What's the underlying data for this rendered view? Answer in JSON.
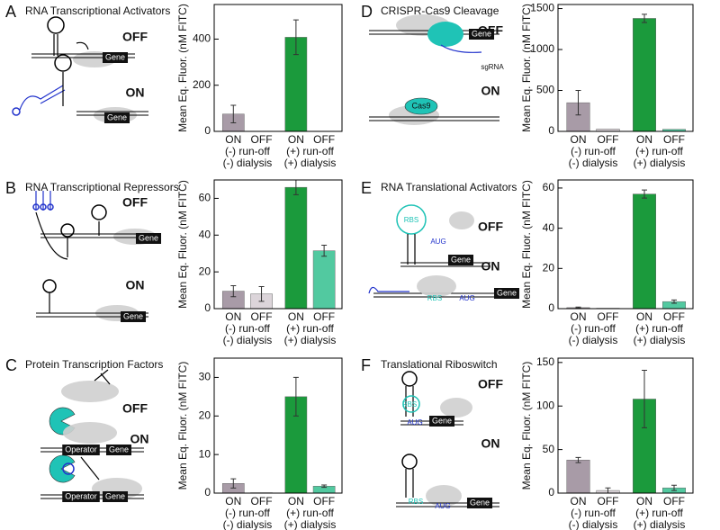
{
  "panels": [
    {
      "letter": "A",
      "title": "RNA Transcriptional Activators",
      "labels": [
        "OFF",
        "ON",
        "Gene",
        "Gene"
      ]
    },
    {
      "letter": "B",
      "title": "RNA Transcriptional Repressors",
      "labels": [
        "OFF",
        "ON",
        "Gene",
        "Gene"
      ]
    },
    {
      "letter": "C",
      "title": "Protein Transcription Factors",
      "labels": [
        "OFF",
        "ON",
        "Operator",
        "Gene",
        "Operator",
        "Gene"
      ]
    },
    {
      "letter": "D",
      "title": "CRISPR-Cas9 Cleavage",
      "labels": [
        "OFF",
        "ON",
        "Gene",
        "sgRNA",
        "Cas9"
      ]
    },
    {
      "letter": "E",
      "title": "RNA Translational Activators",
      "labels": [
        "OFF",
        "ON",
        "RBS",
        "AUG",
        "Gene",
        "RBS",
        "AUG",
        "Gene"
      ]
    },
    {
      "letter": "F",
      "title": "Translational Riboswitch",
      "labels": [
        "OFF",
        "ON",
        "RBS",
        "AUG",
        "Gene",
        "RBS",
        "AUG",
        "Gene"
      ]
    }
  ],
  "chart_data": [
    {
      "type": "bar",
      "ylabel": "Mean Eq. Fluor. (nM FITC)",
      "categories": [
        "ON",
        "OFF",
        "ON",
        "OFF"
      ],
      "group_labels": [
        [
          "(-) run-off",
          "(-) dialysis"
        ],
        [
          "(+) run-off",
          "(+) dialysis"
        ]
      ],
      "values": [
        75,
        1,
        408,
        1
      ],
      "errors": [
        38,
        null,
        75,
        null
      ],
      "colors": [
        "#a89ba7",
        "#dcd5da",
        "#1b9a3c",
        "#52c9a0"
      ],
      "ylim": [
        0,
        550
      ],
      "yticks": [
        0,
        200,
        400
      ]
    },
    {
      "type": "bar",
      "ylabel": "Mean Eq. Fluor. (nM FITC)",
      "categories": [
        "ON",
        "OFF",
        "ON",
        "OFF"
      ],
      "group_labels": [
        [
          "(-) run-off",
          "(-) dialysis"
        ],
        [
          "(+) run-off",
          "(+) dialysis"
        ]
      ],
      "values": [
        9.5,
        8,
        66,
        31.5
      ],
      "errors": [
        3,
        4,
        4,
        3
      ],
      "colors": [
        "#a89ba7",
        "#dcd5da",
        "#1b9a3c",
        "#52c9a0"
      ],
      "ylim": [
        0,
        70
      ],
      "yticks": [
        0,
        20,
        40,
        60
      ]
    },
    {
      "type": "bar",
      "ylabel": "Mean Eq. Fluor. (nM FITC)",
      "categories": [
        "ON",
        "OFF",
        "ON",
        "OFF"
      ],
      "group_labels": [
        [
          "(-) run-off",
          "(-) dialysis"
        ],
        [
          "(+) run-off",
          "(+) dialysis"
        ]
      ],
      "values": [
        2.5,
        0.1,
        25,
        1.8
      ],
      "errors": [
        1.2,
        null,
        5,
        0.3
      ],
      "colors": [
        "#a89ba7",
        "#dcd5da",
        "#1b9a3c",
        "#52c9a0"
      ],
      "ylim": [
        0,
        35
      ],
      "yticks": [
        0,
        10,
        20,
        30
      ]
    },
    {
      "type": "bar",
      "ylabel": "Mean Eq. Fluor. (nM FITC)",
      "categories": [
        "ON",
        "OFF",
        "ON",
        "OFF"
      ],
      "group_labels": [
        [
          "(-) run-off",
          "(-) dialysis"
        ],
        [
          "(+) run-off",
          "(+) dialysis"
        ]
      ],
      "values": [
        350,
        30,
        1380,
        25
      ],
      "errors": [
        150,
        null,
        50,
        null
      ],
      "colors": [
        "#a89ba7",
        "#dcd5da",
        "#1b9a3c",
        "#52c9a0"
      ],
      "ylim": [
        0,
        1550
      ],
      "yticks": [
        0,
        500,
        1000,
        1500
      ]
    },
    {
      "type": "bar",
      "ylabel": "Mean Eq. Fluor. (nM FITC)",
      "categories": [
        "ON",
        "OFF",
        "ON",
        "OFF"
      ],
      "group_labels": [
        [
          "(-) run-off",
          "(-) dialysis"
        ],
        [
          "(+) run-off",
          "(+) dialysis"
        ]
      ],
      "values": [
        0.5,
        0.2,
        57,
        3.5
      ],
      "errors": [
        0.3,
        null,
        2,
        0.8
      ],
      "colors": [
        "#a89ba7",
        "#dcd5da",
        "#1b9a3c",
        "#52c9a0"
      ],
      "ylim": [
        0,
        64
      ],
      "yticks": [
        0,
        20,
        40,
        60
      ]
    },
    {
      "type": "bar",
      "ylabel": "Mean Eq. Fluor. (nM FITC)",
      "categories": [
        "ON",
        "OFF",
        "ON",
        "OFF"
      ],
      "group_labels": [
        [
          "(-) run-off",
          "(-) dialysis"
        ],
        [
          "(+) run-off",
          "(+) dialysis"
        ]
      ],
      "values": [
        38,
        3,
        108,
        6
      ],
      "errors": [
        3,
        3,
        33,
        3
      ],
      "colors": [
        "#a89ba7",
        "#dcd5da",
        "#1b9a3c",
        "#52c9a0"
      ],
      "ylim": [
        0,
        155
      ],
      "yticks": [
        0,
        50,
        100,
        150
      ]
    }
  ]
}
